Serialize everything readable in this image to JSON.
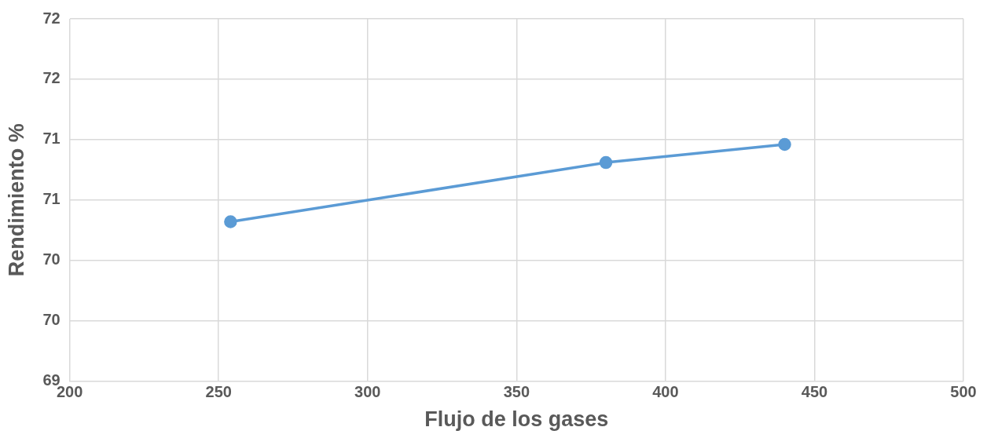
{
  "chart_data": {
    "type": "line",
    "xlabel": "Flujo de los gases",
    "ylabel": "Rendimiento %",
    "x": [
      254,
      380,
      440
    ],
    "series": [
      {
        "color": "#5b9bd5",
        "values": [
          70.32,
          70.81,
          70.96
        ]
      }
    ],
    "xlim": [
      200,
      500
    ],
    "xticks": [
      200,
      250,
      300,
      350,
      400,
      450,
      500
    ],
    "ylim": [
      69,
      72
    ],
    "yticks": [
      69,
      {
        "value": 69.5,
        "label": "70"
      },
      70,
      {
        "value": 70.5,
        "label": "71"
      },
      71,
      {
        "value": 71.5,
        "label": "72"
      },
      72
    ],
    "grid": true,
    "legend": false,
    "marker": "circle",
    "line_style": "solid"
  }
}
